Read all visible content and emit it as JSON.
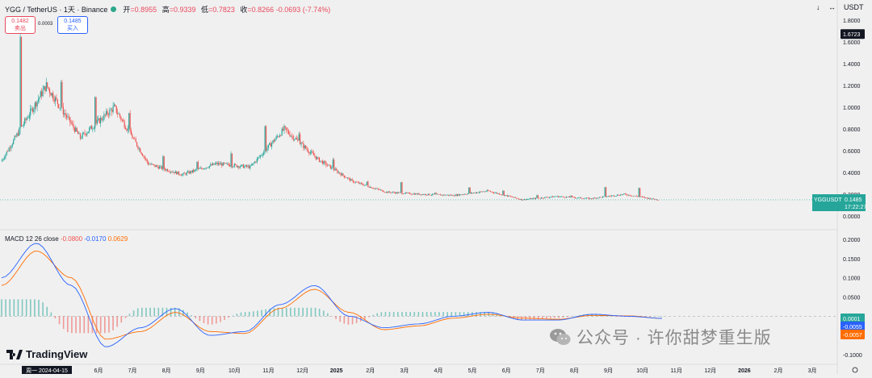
{
  "header": {
    "symbol": "YGG / TetherUS · 1天 · Binance",
    "open_label": "开",
    "open": "=0.8955",
    "high_label": "高",
    "high": "=0.9339",
    "low_label": "低",
    "low": "=0.7823",
    "close_label": "收",
    "close": "=0.8266",
    "change": "-0.0693 (-7.74%)"
  },
  "trade": {
    "sell_price": "0.1482",
    "sell_label": "卖出",
    "spread": "0.0003",
    "buy_price": "0.1485",
    "buy_label": "买入"
  },
  "toolbar": {
    "down_arrow": "↓",
    "separator": "↔",
    "currency": "USDT"
  },
  "macd_legend": {
    "name": "MACD 12 26 close",
    "hist": "-0.0800",
    "macd": "-0.0170",
    "signal": "0.0629"
  },
  "price_badges": {
    "high_marker": "1.6723",
    "ticker": "YGGUSDT",
    "last": "0.1485",
    "countdown": "17:22:27"
  },
  "macd_badges": {
    "hist": "0.0001",
    "macd": "-0.0055",
    "signal": "-0.0057"
  },
  "branding": {
    "logo_text": "TradingView",
    "watermark": "公众号 · 许你甜梦重生版"
  },
  "axis_settings_icon": "gear-icon",
  "colors": {
    "up": "#26a69a",
    "down": "#ef5350",
    "macd": "#2962ff",
    "signal": "#ff6d00",
    "last_line": "#26a69a"
  },
  "chart_data": [
    {
      "type": "candlestick",
      "title": "YGG / TetherUS · 1天 · Binance",
      "y_ticks": [
        "1.8000",
        "1.6000",
        "1.4000",
        "1.2000",
        "1.0000",
        "0.8000",
        "0.6000",
        "0.4000",
        "0.2000",
        "0.0000"
      ],
      "ylim": [
        0,
        1.8
      ],
      "x_ticks": [
        "周一 2024-04-15",
        "6月",
        "7月",
        "8月",
        "9月",
        "10月",
        "11月",
        "12月",
        "2025",
        "2月",
        "3月",
        "4月",
        "5月",
        "6月",
        "7月",
        "8月",
        "9月",
        "10月",
        "11月",
        "12月",
        "2026",
        "2月",
        "3月"
      ],
      "current_price": 0.1485,
      "grid": false,
      "monthly_close": [
        {
          "m": "2024-04",
          "o": 0.5,
          "h": 1.72,
          "l": 0.45,
          "c": 1.2
        },
        {
          "m": "2024-05",
          "o": 1.2,
          "h": 1.3,
          "l": 0.62,
          "c": 0.72
        },
        {
          "m": "2024-06",
          "o": 0.72,
          "h": 1.16,
          "l": 0.7,
          "c": 1.0
        },
        {
          "m": "2024-07",
          "o": 1.0,
          "h": 1.02,
          "l": 0.4,
          "c": 0.48
        },
        {
          "m": "2024-08",
          "o": 0.48,
          "h": 0.56,
          "l": 0.27,
          "c": 0.38
        },
        {
          "m": "2024-09",
          "o": 0.38,
          "h": 0.52,
          "l": 0.35,
          "c": 0.48
        },
        {
          "m": "2024-10",
          "o": 0.48,
          "h": 0.62,
          "l": 0.4,
          "c": 0.45
        },
        {
          "m": "2024-11",
          "o": 0.45,
          "h": 0.86,
          "l": 0.4,
          "c": 0.8
        },
        {
          "m": "2024-12",
          "o": 0.8,
          "h": 0.82,
          "l": 0.42,
          "c": 0.52
        },
        {
          "m": "2025-01",
          "o": 0.52,
          "h": 0.55,
          "l": 0.28,
          "c": 0.32
        },
        {
          "m": "2025-02",
          "o": 0.32,
          "h": 0.33,
          "l": 0.18,
          "c": 0.22
        },
        {
          "m": "2025-03",
          "o": 0.22,
          "h": 0.32,
          "l": 0.17,
          "c": 0.2
        },
        {
          "m": "2025-04",
          "o": 0.2,
          "h": 0.22,
          "l": 0.14,
          "c": 0.19
        },
        {
          "m": "2025-05",
          "o": 0.19,
          "h": 0.27,
          "l": 0.17,
          "c": 0.23
        },
        {
          "m": "2025-06",
          "o": 0.23,
          "h": 0.24,
          "l": 0.14,
          "c": 0.15
        },
        {
          "m": "2025-07",
          "o": 0.15,
          "h": 0.2,
          "l": 0.14,
          "c": 0.18
        },
        {
          "m": "2025-08",
          "o": 0.18,
          "h": 0.2,
          "l": 0.15,
          "c": 0.16
        },
        {
          "m": "2025-09",
          "o": 0.16,
          "h": 0.27,
          "l": 0.15,
          "c": 0.2
        },
        {
          "m": "2025-10",
          "o": 0.2,
          "h": 0.27,
          "l": 0.05,
          "c": 0.1485
        }
      ]
    },
    {
      "type": "line",
      "title": "MACD 12 26 close",
      "y_ticks": [
        "0.2000",
        "0.1500",
        "0.1000",
        "0.0500",
        "0.0000",
        "-0.0500",
        "-0.1000"
      ],
      "ylim": [
        -0.1,
        0.2
      ],
      "series": [
        {
          "name": "MACD",
          "color": "#2962ff",
          "values": [
            0.1,
            0.19,
            0.08,
            -0.08,
            -0.03,
            0.02,
            -0.05,
            -0.04,
            0.03,
            0.08,
            0.0,
            -0.03,
            -0.02,
            0.0,
            0.01,
            -0.01,
            -0.01,
            0.005,
            0.0,
            -0.0055
          ]
        },
        {
          "name": "Signal",
          "color": "#ff6d00",
          "values": [
            0.08,
            0.17,
            0.1,
            -0.06,
            -0.04,
            0.01,
            -0.04,
            -0.045,
            0.02,
            0.07,
            0.01,
            -0.035,
            -0.025,
            -0.005,
            0.005,
            -0.005,
            -0.008,
            0.002,
            0.001,
            -0.0057
          ]
        }
      ]
    }
  ]
}
